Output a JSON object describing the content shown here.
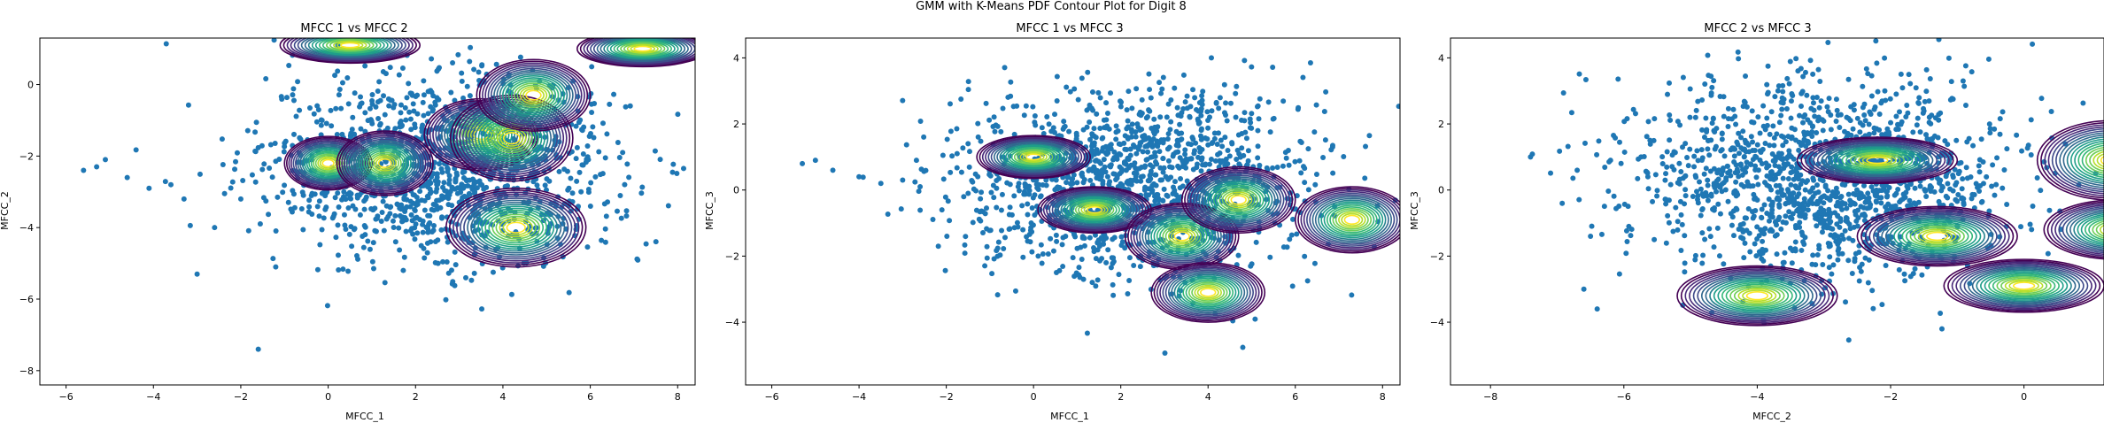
{
  "figure_title": "GMM with K-Means PDF Contour Plot for Digit 8",
  "chart_data": [
    {
      "type": "scatter",
      "title": "MFCC 1 vs MFCC 2",
      "xlabel": "MFCC_1",
      "ylabel": "MFCC_2",
      "xlim": [
        -6.6,
        8.4
      ],
      "ylim": [
        -8.4,
        1.3
      ],
      "xticks": [
        -6,
        -4,
        -2,
        0,
        2,
        4,
        6,
        8
      ],
      "yticks": [
        -8,
        -6,
        -4,
        -2,
        0
      ],
      "point_color": "#1f77b4",
      "scatter_cloud": {
        "center": [
          2.6,
          -2.3
        ],
        "spread": [
          2.0,
          1.3
        ],
        "count": 1400
      },
      "scatter_outliers": [
        [
          -5.6,
          -2.4
        ],
        [
          -5.3,
          -2.3
        ],
        [
          -5.1,
          -2.1
        ],
        [
          -4.6,
          -2.6
        ],
        [
          -4.1,
          -2.9
        ],
        [
          -3.6,
          -2.8
        ],
        [
          -3.0,
          -5.3
        ],
        [
          -2.6,
          -4.0
        ],
        [
          -1.6,
          -7.4
        ],
        [
          -1.2,
          -5.1
        ],
        [
          -2.0,
          -3.2
        ],
        [
          -3.3,
          -3.2
        ]
      ],
      "components": [
        {
          "mean": [
            0.0,
            -2.2
          ],
          "sx": 1.0,
          "sy": 0.75,
          "rot": 0
        },
        {
          "mean": [
            1.3,
            -2.2
          ],
          "sx": 1.1,
          "sy": 0.9,
          "rot": 0
        },
        {
          "mean": [
            3.5,
            -1.4
          ],
          "sx": 1.3,
          "sy": 1.0,
          "rot": 0
        },
        {
          "mean": [
            4.2,
            -1.5
          ],
          "sx": 1.4,
          "sy": 1.2,
          "rot": 0
        },
        {
          "mean": [
            4.3,
            -4.0
          ],
          "sx": 1.6,
          "sy": 1.1,
          "rot": 0
        },
        {
          "mean": [
            4.7,
            -0.3
          ],
          "sx": 1.3,
          "sy": 1.0,
          "rot": 0
        },
        {
          "mean": [
            0.5,
            1.1
          ],
          "sx": 1.6,
          "sy": 0.5,
          "rot": 0
        },
        {
          "mean": [
            7.2,
            1.0
          ],
          "sx": 1.5,
          "sy": 0.5,
          "rot": 0
        }
      ]
    },
    {
      "type": "scatter",
      "title": "MFCC 1 vs MFCC 3",
      "xlabel": "MFCC_1",
      "ylabel": "MFCC_3",
      "xlim": [
        -6.6,
        8.4
      ],
      "ylim": [
        -5.9,
        4.6
      ],
      "xticks": [
        -6,
        -4,
        -2,
        0,
        2,
        4,
        6,
        8
      ],
      "yticks": [
        -4,
        -2,
        0,
        2,
        4
      ],
      "point_color": "#1f77b4",
      "scatter_cloud": {
        "center": [
          2.3,
          0.2
        ],
        "spread": [
          2.0,
          1.4
        ],
        "count": 1500
      },
      "scatter_outliers": [
        [
          -5.3,
          0.8
        ],
        [
          -5.0,
          0.9
        ],
        [
          -4.6,
          0.6
        ],
        [
          -4.0,
          0.4
        ],
        [
          -3.5,
          0.2
        ],
        [
          -3.0,
          0.3
        ],
        [
          -2.6,
          0.1
        ],
        [
          -2.1,
          -0.6
        ],
        [
          -1.6,
          -0.2
        ]
      ],
      "components": [
        {
          "mean": [
            0.0,
            1.0
          ],
          "sx": 1.3,
          "sy": 0.65,
          "rot": 0
        },
        {
          "mean": [
            1.4,
            -0.6
          ],
          "sx": 1.3,
          "sy": 0.7,
          "rot": 0
        },
        {
          "mean": [
            3.4,
            -1.4
          ],
          "sx": 1.3,
          "sy": 1.0,
          "rot": 0
        },
        {
          "mean": [
            4.0,
            -3.1
          ],
          "sx": 1.3,
          "sy": 0.9,
          "rot": 0
        },
        {
          "mean": [
            4.7,
            -0.3
          ],
          "sx": 1.3,
          "sy": 1.0,
          "rot": 0
        },
        {
          "mean": [
            7.3,
            -0.9
          ],
          "sx": 1.3,
          "sy": 1.0,
          "rot": 0
        }
      ]
    },
    {
      "type": "scatter",
      "title": "MFCC 2 vs MFCC 3",
      "xlabel": "MFCC_2",
      "ylabel": "MFCC_3",
      "xlim": [
        -8.6,
        1.2
      ],
      "ylim": [
        -5.9,
        4.6
      ],
      "xticks": [
        -8,
        -6,
        -4,
        -2,
        0
      ],
      "yticks": [
        -4,
        -2,
        0,
        2,
        4
      ],
      "point_color": "#1f77b4",
      "scatter_cloud": {
        "center": [
          -3.0,
          0.3
        ],
        "spread": [
          1.4,
          1.5
        ],
        "count": 1500
      },
      "scatter_outliers": [
        [
          -7.4,
          1.0
        ],
        [
          -6.7,
          0.6
        ],
        [
          -6.5,
          -1.4
        ],
        [
          -6.6,
          -3.0
        ],
        [
          -6.4,
          -3.6
        ],
        [
          -6.2,
          0.9
        ]
      ],
      "components": [
        {
          "mean": [
            -2.2,
            0.9
          ],
          "sx": 1.2,
          "sy": 0.7,
          "rot": 0
        },
        {
          "mean": [
            -4.0,
            -3.2
          ],
          "sx": 1.2,
          "sy": 0.9,
          "rot": 0
        },
        {
          "mean": [
            -1.3,
            -1.4
          ],
          "sx": 1.2,
          "sy": 0.9,
          "rot": 0
        },
        {
          "mean": [
            0.0,
            -2.9
          ],
          "sx": 1.2,
          "sy": 0.8,
          "rot": 0
        },
        {
          "mean": [
            1.3,
            0.9
          ],
          "sx": 1.1,
          "sy": 1.2,
          "rot": 0
        },
        {
          "mean": [
            1.4,
            -1.2
          ],
          "sx": 1.1,
          "sy": 0.9,
          "rot": 0
        }
      ]
    }
  ]
}
